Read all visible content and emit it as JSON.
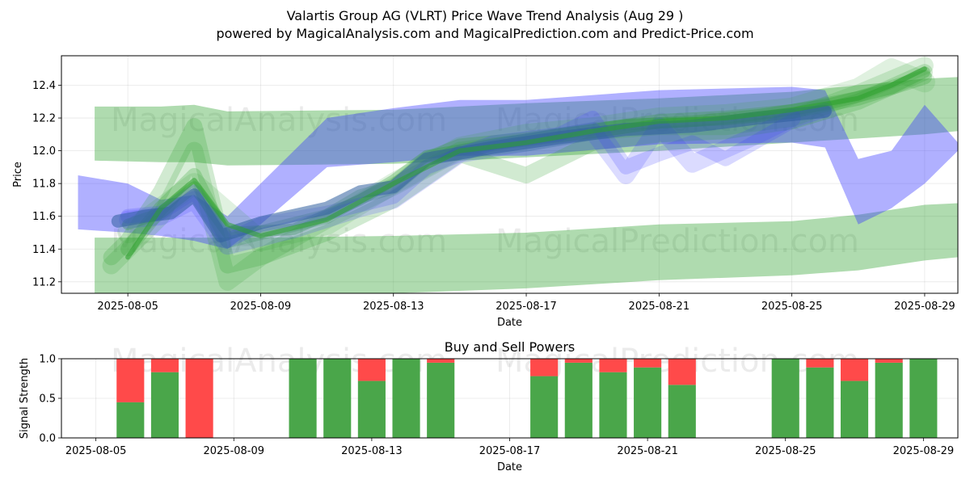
{
  "title": "Valartis Group AG (VLRT) Price Wave Trend Analysis (Aug 29 )",
  "subtitle": "powered by MagicalAnalysis.com and MagicalPrediction.com and Predict-Price.com",
  "watermarks": [
    "MagicalAnalysis.com",
    "MagicalPrediction.com"
  ],
  "colors": {
    "green": "#2ca02c",
    "blue": "#4a4aff",
    "buy": "#4aa64a",
    "sell": "#ff4a4a"
  },
  "chart_data": [
    {
      "type": "area",
      "title": "",
      "xlabel": "Date",
      "ylabel": "Price",
      "x_ticks": [
        "2025-08-05",
        "2025-08-09",
        "2025-08-13",
        "2025-08-17",
        "2025-08-21",
        "2025-08-25",
        "2025-08-29"
      ],
      "y_ticks": [
        "11.2",
        "11.4",
        "11.6",
        "11.8",
        "12.0",
        "12.2",
        "12.4"
      ],
      "xlim": [
        "2025-08-03",
        "2025-08-30"
      ],
      "ylim": [
        11.13,
        12.58
      ],
      "grid": true,
      "bands": [
        {
          "name": "green-upper-channel",
          "color": "#2ca02c",
          "opacity": 0.38,
          "points": [
            {
              "x": "2025-08-04",
              "lo": 11.94,
              "hi": 12.27
            },
            {
              "x": "2025-08-06",
              "lo": 11.93,
              "hi": 12.27
            },
            {
              "x": "2025-08-07",
              "lo": 11.93,
              "hi": 12.28
            },
            {
              "x": "2025-08-08",
              "lo": 11.91,
              "hi": 12.24
            },
            {
              "x": "2025-08-13",
              "lo": 11.92,
              "hi": 12.25
            },
            {
              "x": "2025-08-17",
              "lo": 11.96,
              "hi": 12.29
            },
            {
              "x": "2025-08-21",
              "lo": 12.0,
              "hi": 12.32
            },
            {
              "x": "2025-08-25",
              "lo": 12.05,
              "hi": 12.36
            },
            {
              "x": "2025-08-29",
              "lo": 12.1,
              "hi": 12.44
            },
            {
              "x": "2025-08-30",
              "lo": 12.12,
              "hi": 12.45
            }
          ]
        },
        {
          "name": "green-lower-channel",
          "color": "#2ca02c",
          "opacity": 0.38,
          "points": [
            {
              "x": "2025-08-04",
              "lo": 11.13,
              "hi": 11.47
            },
            {
              "x": "2025-08-09",
              "lo": 11.13,
              "hi": 11.47
            },
            {
              "x": "2025-08-13",
              "lo": 11.13,
              "hi": 11.48
            },
            {
              "x": "2025-08-17",
              "lo": 11.16,
              "hi": 11.5
            },
            {
              "x": "2025-08-21",
              "lo": 11.21,
              "hi": 11.55
            },
            {
              "x": "2025-08-25",
              "lo": 11.24,
              "hi": 11.57
            },
            {
              "x": "2025-08-27",
              "lo": 11.27,
              "hi": 11.61
            },
            {
              "x": "2025-08-29",
              "lo": 11.33,
              "hi": 11.67
            },
            {
              "x": "2025-08-30",
              "lo": 11.35,
              "hi": 11.68
            }
          ]
        },
        {
          "name": "blue-wide-channel",
          "color": "#3a3aff",
          "opacity": 0.4,
          "points": [
            {
              "x": "2025-08-03.5",
              "lo": 11.52,
              "hi": 11.85
            },
            {
              "x": "2025-08-05",
              "lo": 11.5,
              "hi": 11.8
            },
            {
              "x": "2025-08-06",
              "lo": 11.48,
              "hi": 11.7
            },
            {
              "x": "2025-08-07",
              "lo": 11.45,
              "hi": 11.73
            },
            {
              "x": "2025-08-08",
              "lo": 11.4,
              "hi": 11.6
            },
            {
              "x": "2025-08-09",
              "lo": 11.55,
              "hi": 11.8
            },
            {
              "x": "2025-08-11",
              "lo": 11.9,
              "hi": 12.2
            },
            {
              "x": "2025-08-13",
              "lo": 11.93,
              "hi": 12.26
            },
            {
              "x": "2025-08-15",
              "lo": 11.97,
              "hi": 12.31
            },
            {
              "x": "2025-08-17",
              "lo": 11.97,
              "hi": 12.31
            },
            {
              "x": "2025-08-21",
              "lo": 12.04,
              "hi": 12.37
            },
            {
              "x": "2025-08-25",
              "lo": 12.05,
              "hi": 12.39
            },
            {
              "x": "2025-08-26",
              "lo": 12.02,
              "hi": 12.37
            },
            {
              "x": "2025-08-27",
              "lo": 11.55,
              "hi": 11.95
            },
            {
              "x": "2025-08-28",
              "lo": 11.65,
              "hi": 12.0
            },
            {
              "x": "2025-08-29",
              "lo": 11.8,
              "hi": 12.28
            },
            {
              "x": "2025-08-30",
              "lo": 12.0,
              "hi": 12.05
            }
          ]
        }
      ],
      "series": [
        {
          "color": "#2ca02c",
          "opacity": 0.22,
          "width": 20,
          "points": [
            [
              "2025-08-04.5",
              11.35
            ],
            [
              "2025-08-05",
              11.45
            ],
            [
              "2025-08-06",
              11.75
            ],
            [
              "2025-08-07",
              12.15
            ],
            [
              "2025-08-08",
              11.3
            ],
            [
              "2025-08-09",
              11.35
            ],
            [
              "2025-08-11",
              11.5
            ],
            [
              "2025-08-13",
              11.7
            ],
            [
              "2025-08-15",
              11.98
            ],
            [
              "2025-08-17",
              11.85
            ],
            [
              "2025-08-19",
              12.05
            ],
            [
              "2025-08-21",
              12.1
            ],
            [
              "2025-08-23",
              12.12
            ],
            [
              "2025-08-25",
              12.18
            ],
            [
              "2025-08-27",
              12.3
            ],
            [
              "2025-08-29",
              12.48
            ]
          ]
        },
        {
          "color": "#2ca02c",
          "opacity": 0.18,
          "width": 22,
          "points": [
            [
              "2025-08-04.5",
              11.3
            ],
            [
              "2025-08-05",
              11.4
            ],
            [
              "2025-08-06",
              11.6
            ],
            [
              "2025-08-07",
              12.0
            ],
            [
              "2025-08-08",
              11.2
            ],
            [
              "2025-08-09",
              11.35
            ],
            [
              "2025-08-11",
              11.58
            ],
            [
              "2025-08-13",
              11.78
            ],
            [
              "2025-08-15",
              12.0
            ],
            [
              "2025-08-17",
              12.05
            ],
            [
              "2025-08-19",
              12.12
            ],
            [
              "2025-08-21",
              12.15
            ],
            [
              "2025-08-23",
              12.15
            ],
            [
              "2025-08-25",
              12.2
            ],
            [
              "2025-08-27",
              12.35
            ],
            [
              "2025-08-29",
              12.52
            ]
          ]
        },
        {
          "color": "#2ca02c",
          "opacity": 0.25,
          "width": 18,
          "points": [
            [
              "2025-08-05",
              11.4
            ],
            [
              "2025-08-06",
              11.65
            ],
            [
              "2025-08-07",
              11.85
            ],
            [
              "2025-08-08",
              11.45
            ],
            [
              "2025-08-09",
              11.5
            ],
            [
              "2025-08-11",
              11.6
            ],
            [
              "2025-08-12",
              11.72
            ],
            [
              "2025-08-13",
              11.78
            ],
            [
              "2025-08-14",
              11.95
            ],
            [
              "2025-08-15",
              12.03
            ],
            [
              "2025-08-17",
              12.07
            ],
            [
              "2025-08-19",
              12.12
            ],
            [
              "2025-08-21",
              12.18
            ],
            [
              "2025-08-23",
              12.2
            ],
            [
              "2025-08-25",
              12.24
            ],
            [
              "2025-08-27",
              12.32
            ],
            [
              "2025-08-29",
              12.45
            ]
          ]
        },
        {
          "color": "#2ca02c",
          "opacity": 0.15,
          "width": 26,
          "points": [
            [
              "2025-08-05",
              11.5
            ],
            [
              "2025-08-07",
              11.8
            ],
            [
              "2025-08-09",
              11.45
            ],
            [
              "2025-08-11",
              11.55
            ],
            [
              "2025-08-13",
              11.8
            ],
            [
              "2025-08-15",
              12.02
            ],
            [
              "2025-08-17",
              12.1
            ],
            [
              "2025-08-19",
              12.14
            ],
            [
              "2025-08-21",
              12.2
            ],
            [
              "2025-08-23",
              12.22
            ],
            [
              "2025-08-25",
              12.26
            ],
            [
              "2025-08-27",
              12.38
            ],
            [
              "2025-08-28",
              12.5
            ],
            [
              "2025-08-29",
              12.42
            ]
          ]
        },
        {
          "color": "#2ca02c",
          "opacity": 0.3,
          "width": 14,
          "points": [
            [
              "2025-08-05",
              11.55
            ],
            [
              "2025-08-06",
              11.62
            ],
            [
              "2025-08-07",
              11.78
            ],
            [
              "2025-08-08",
              11.5
            ],
            [
              "2025-08-10",
              11.52
            ],
            [
              "2025-08-12",
              11.7
            ],
            [
              "2025-08-13",
              11.82
            ],
            [
              "2025-08-14",
              11.97
            ],
            [
              "2025-08-16",
              12.04
            ],
            [
              "2025-08-18",
              12.1
            ],
            [
              "2025-08-20",
              12.16
            ],
            [
              "2025-08-22",
              12.18
            ],
            [
              "2025-08-24",
              12.22
            ],
            [
              "2025-08-26",
              12.28
            ],
            [
              "2025-08-28",
              12.38
            ],
            [
              "2025-08-29",
              12.48
            ]
          ]
        },
        {
          "color": "#3a3aff",
          "opacity": 0.2,
          "width": 18,
          "points": [
            [
              "2025-08-05",
              11.6
            ],
            [
              "2025-08-06",
              11.62
            ],
            [
              "2025-08-07",
              11.75
            ],
            [
              "2025-08-08",
              11.45
            ],
            [
              "2025-08-09",
              11.55
            ],
            [
              "2025-08-11",
              11.62
            ],
            [
              "2025-08-13",
              11.72
            ],
            [
              "2025-08-14",
              11.9
            ],
            [
              "2025-08-16",
              12.05
            ],
            [
              "2025-08-18",
              12.1
            ],
            [
              "2025-08-19",
              12.2
            ],
            [
              "2025-08-20",
              11.9
            ],
            [
              "2025-08-21",
              11.98
            ],
            [
              "2025-08-22",
              12.05
            ],
            [
              "2025-08-23",
              11.95
            ],
            [
              "2025-08-25",
              12.18
            ],
            [
              "2025-08-26",
              12.25
            ]
          ]
        },
        {
          "color": "#3a3aff",
          "opacity": 0.18,
          "width": 22,
          "points": [
            [
              "2025-08-05",
              11.58
            ],
            [
              "2025-08-06",
              11.6
            ],
            [
              "2025-08-07",
              11.7
            ],
            [
              "2025-08-08",
              11.42
            ],
            [
              "2025-08-10",
              11.52
            ],
            [
              "2025-08-12",
              11.65
            ],
            [
              "2025-08-13",
              11.7
            ],
            [
              "2025-08-15",
              11.98
            ],
            [
              "2025-08-17",
              12.05
            ],
            [
              "2025-08-19",
              12.12
            ],
            [
              "2025-08-20",
              11.85
            ],
            [
              "2025-08-21",
              12.15
            ],
            [
              "2025-08-22",
              11.92
            ],
            [
              "2025-08-24",
              12.1
            ],
            [
              "2025-08-25",
              12.2
            ]
          ]
        },
        {
          "color": "#2f5f9f",
          "opacity": 0.55,
          "width": 16,
          "points": [
            [
              "2025-08-04.7",
              11.57
            ],
            [
              "2025-08-05.5",
              11.6
            ],
            [
              "2025-08-06.3",
              11.62
            ],
            [
              "2025-08-07",
              11.73
            ],
            [
              "2025-08-07.8",
              11.48
            ],
            [
              "2025-08-09",
              11.56
            ],
            [
              "2025-08-11",
              11.65
            ],
            [
              "2025-08-12",
              11.75
            ],
            [
              "2025-08-13",
              11.78
            ],
            [
              "2025-08-14",
              11.95
            ],
            [
              "2025-08-16",
              12.02
            ],
            [
              "2025-08-18",
              12.08
            ],
            [
              "2025-08-20",
              12.13
            ],
            [
              "2025-08-22",
              12.15
            ],
            [
              "2025-08-24",
              12.2
            ],
            [
              "2025-08-26",
              12.24
            ]
          ]
        },
        {
          "color": "#2ca02c",
          "opacity": 0.55,
          "width": 6,
          "points": [
            [
              "2025-08-05",
              11.35
            ],
            [
              "2025-08-06",
              11.65
            ],
            [
              "2025-08-07",
              11.82
            ],
            [
              "2025-08-08",
              11.55
            ],
            [
              "2025-08-09",
              11.48
            ],
            [
              "2025-08-11",
              11.58
            ],
            [
              "2025-08-13",
              11.8
            ],
            [
              "2025-08-15",
              12.0
            ],
            [
              "2025-08-17",
              12.05
            ],
            [
              "2025-08-19",
              12.12
            ],
            [
              "2025-08-21",
              12.18
            ],
            [
              "2025-08-23",
              12.2
            ],
            [
              "2025-08-25",
              12.25
            ],
            [
              "2025-08-27",
              12.32
            ],
            [
              "2025-08-28",
              12.4
            ],
            [
              "2025-08-29",
              12.5
            ]
          ]
        }
      ]
    },
    {
      "type": "bar",
      "title": "Buy and Sell Powers",
      "xlabel": "Date",
      "ylabel": "Signal Strength",
      "x_ticks": [
        "2025-08-05",
        "2025-08-09",
        "2025-08-13",
        "2025-08-17",
        "2025-08-21",
        "2025-08-25",
        "2025-08-29"
      ],
      "y_ticks": [
        "0.0",
        "0.5",
        "1.0"
      ],
      "ylim": [
        0,
        1.0
      ],
      "xlim": [
        "2025-08-04",
        "2025-08-30"
      ],
      "grid": true,
      "categories": [
        "2025-08-06",
        "2025-08-07",
        "2025-08-08",
        "2025-08-11",
        "2025-08-12",
        "2025-08-13",
        "2025-08-14",
        "2025-08-15",
        "2025-08-18",
        "2025-08-19",
        "2025-08-20",
        "2025-08-21",
        "2025-08-22",
        "2025-08-25",
        "2025-08-26",
        "2025-08-27",
        "2025-08-28",
        "2025-08-29"
      ],
      "series": [
        {
          "name": "Buy",
          "color": "#4aa64a",
          "values": [
            0.45,
            0.83,
            0.0,
            1.0,
            1.0,
            0.72,
            1.0,
            0.95,
            0.78,
            0.95,
            0.83,
            0.89,
            0.67,
            1.0,
            0.89,
            0.72,
            0.95,
            1.0
          ]
        },
        {
          "name": "Sell",
          "color": "#ff4a4a",
          "values": [
            0.55,
            0.17,
            1.0,
            0.0,
            0.0,
            0.28,
            0.0,
            0.05,
            0.22,
            0.05,
            0.17,
            0.11,
            0.33,
            0.0,
            0.11,
            0.28,
            0.05,
            0.0
          ]
        }
      ]
    }
  ]
}
